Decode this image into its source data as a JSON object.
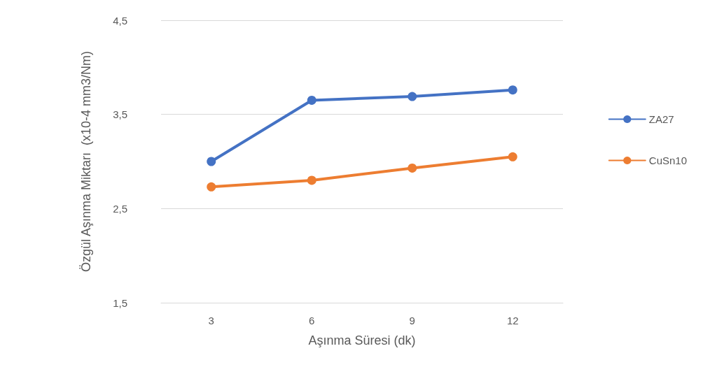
{
  "chart_data": {
    "type": "line",
    "xlabel": "Aşınma Süresi (dk)",
    "ylabel": "Özgül Aşınma Miktarı  (x10-4 mm3/Nm)",
    "categories": [
      "3",
      "6",
      "9",
      "12"
    ],
    "series": [
      {
        "name": "ZA27",
        "color": "#4472c4",
        "values": [
          3.0,
          3.65,
          3.69,
          3.76
        ]
      },
      {
        "name": "CuSn10",
        "color": "#ed7d31",
        "values": [
          2.73,
          2.8,
          2.93,
          3.05
        ]
      }
    ],
    "ylim": [
      1.5,
      4.5
    ],
    "yticks": [
      {
        "value": 1.5,
        "label": "1,5"
      },
      {
        "value": 2.5,
        "label": "2,5"
      },
      {
        "value": 3.5,
        "label": "3,5"
      },
      {
        "value": 4.5,
        "label": "4,5"
      }
    ],
    "grid": "y",
    "legend": "right",
    "marker": "circle",
    "line_style": "solid"
  }
}
